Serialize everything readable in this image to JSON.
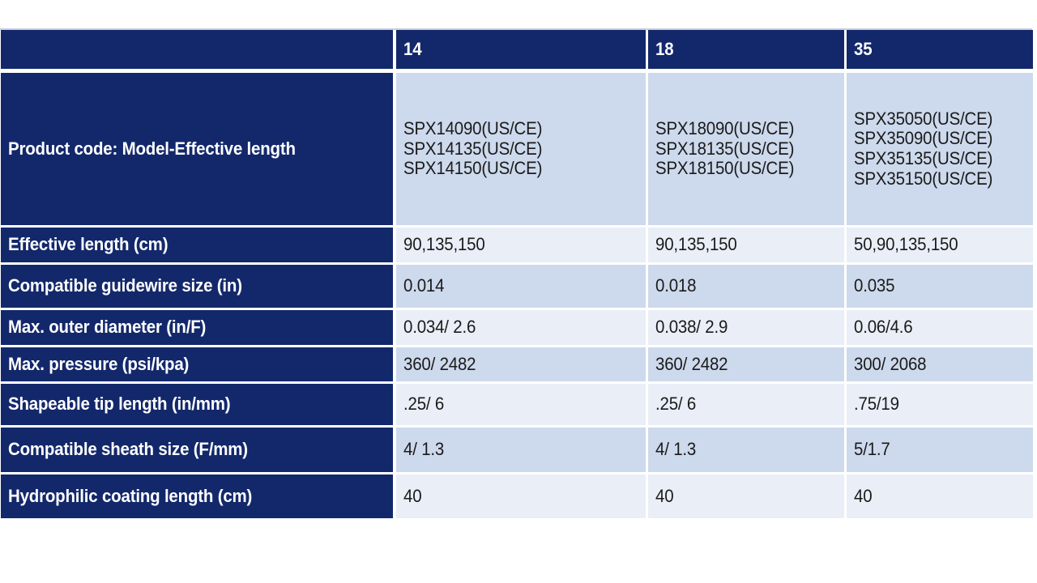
{
  "theme": {
    "navy": "#13286b",
    "row_dark": "#cdd9ec",
    "row_light": "#e9eef7",
    "gridline": "#ffffff",
    "text_dark": "#1a1a1a",
    "text_light": "#ffffff"
  },
  "table": {
    "header": {
      "c0": "",
      "c1": "14",
      "c2": "18",
      "c3": "35"
    },
    "rows": [
      {
        "label": "Product code: Model-Effective length",
        "values": [
          "SPX14090(US/CE)\nSPX14135(US/CE)\nSPX14150(US/CE)",
          "SPX18090(US/CE)\nSPX18135(US/CE)\nSPX18150(US/CE)",
          "SPX35050(US/CE)\nSPX35090(US/CE)\nSPX35135(US/CE)\nSPX35150(US/CE)"
        ]
      },
      {
        "label": "Effective length (cm)",
        "values": [
          "90,135,150",
          "90,135,150",
          "50,90,135,150"
        ]
      },
      {
        "label": "Compatible guidewire size (in)",
        "values": [
          "0.014",
          "0.018",
          "0.035"
        ]
      },
      {
        "label": "Max. outer diameter (in/F)",
        "values": [
          "0.034/ 2.6",
          "0.038/ 2.9",
          "0.06/4.6"
        ]
      },
      {
        "label": "Max. pressure (psi/kpa)",
        "values": [
          "360/ 2482",
          "360/ 2482",
          "300/ 2068"
        ]
      },
      {
        "label": "Shapeable tip length (in/mm)",
        "values": [
          ".25/ 6",
          ".25/ 6",
          ".75/19"
        ]
      },
      {
        "label": "Compatible sheath size  (F/mm)",
        "values": [
          "4/ 1.3",
          "4/ 1.3",
          "5/1.7"
        ]
      },
      {
        "label": "Hydrophilic coating length (cm)",
        "values": [
          "40",
          "40",
          "40"
        ]
      }
    ]
  }
}
